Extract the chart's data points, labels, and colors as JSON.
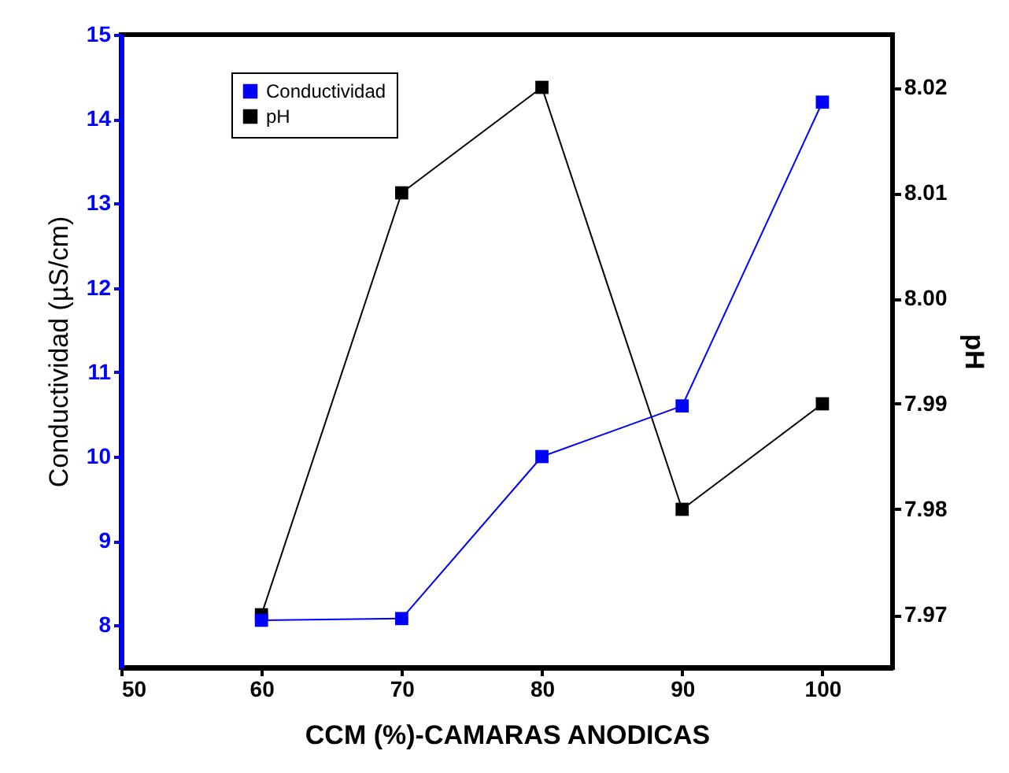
{
  "chart_data": {
    "type": "line",
    "xlabel": "CCM (%)-CAMARAS ANODICAS",
    "ylabel": "Conductividad (µS/cm)",
    "y2label": "pH",
    "x": [
      60,
      70,
      80,
      90,
      100
    ],
    "series": [
      {
        "name": "Conductividad",
        "color": "#0000ff",
        "values": [
          8.06,
          8.08,
          10.0,
          10.6,
          14.2
        ]
      },
      {
        "name": "pH",
        "color": "#000000",
        "axis": "y2",
        "values": [
          7.97,
          8.01,
          8.02,
          7.98,
          7.99
        ]
      }
    ],
    "xlim": [
      50,
      105
    ],
    "xticks": [
      50,
      60,
      70,
      80,
      90,
      100
    ],
    "ylim": [
      7.5,
      15
    ],
    "yticks": [
      8,
      9,
      10,
      11,
      12,
      13,
      14,
      15
    ],
    "y2lim": [
      7.965,
      8.025
    ],
    "y2ticks": [
      7.97,
      7.98,
      7.99,
      {
        "value": 8,
        "label": "8.00"
      },
      8.01,
      8.02
    ],
    "marker": "square",
    "line_style": "solid",
    "legend": "top left",
    "grid": false
  }
}
